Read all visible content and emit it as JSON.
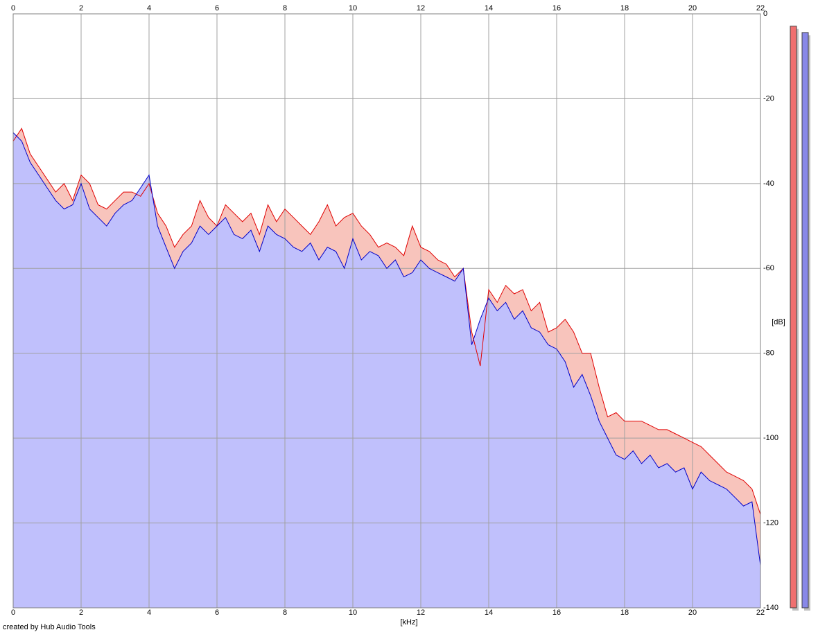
{
  "chart_data": {
    "type": "area",
    "footer": "created by Hub Audio Tools",
    "xlabel": "[kHz]",
    "ylabel": "[dB]",
    "xlim": [
      0,
      22
    ],
    "xticks": [
      0,
      2,
      4,
      6,
      8,
      10,
      12,
      14,
      16,
      18,
      20,
      22
    ],
    "ylim": [
      -140,
      0
    ],
    "yticks": [
      0,
      -20,
      -40,
      -60,
      -80,
      -100,
      -120,
      -140
    ],
    "grid": true,
    "x": [
      0,
      0.25,
      0.5,
      0.75,
      1,
      1.25,
      1.5,
      1.75,
      2,
      2.25,
      2.5,
      2.75,
      3,
      3.25,
      3.5,
      3.75,
      4,
      4.25,
      4.5,
      4.75,
      5,
      5.25,
      5.5,
      5.75,
      6,
      6.25,
      6.5,
      6.75,
      7,
      7.25,
      7.5,
      7.75,
      8,
      8.25,
      8.5,
      8.75,
      9,
      9.25,
      9.5,
      9.75,
      10,
      10.25,
      10.5,
      10.75,
      11,
      11.25,
      11.5,
      11.75,
      12,
      12.25,
      12.5,
      12.75,
      13,
      13.25,
      13.5,
      13.75,
      14,
      14.25,
      14.5,
      14.75,
      15,
      15.25,
      15.5,
      15.75,
      16,
      16.25,
      16.5,
      16.75,
      17,
      17.25,
      17.5,
      17.75,
      18,
      18.25,
      18.5,
      18.75,
      19,
      19.25,
      19.5,
      19.75,
      20,
      20.25,
      20.5,
      20.75,
      21,
      21.25,
      21.5,
      21.75,
      22
    ],
    "series": [
      {
        "color": "#e00000",
        "fill": "#f8c4bc",
        "values": [
          -30,
          -27,
          -33,
          -36,
          -39,
          -42,
          -40,
          -44,
          -38,
          -40,
          -45,
          -46,
          -44,
          -42,
          -42,
          -43,
          -40,
          -47,
          -50,
          -55,
          -52,
          -50,
          -44,
          -48,
          -50,
          -45,
          -47,
          -49,
          -47,
          -52,
          -45,
          -49,
          -46,
          -48,
          -50,
          -52,
          -49,
          -45,
          -50,
          -48,
          -47,
          -50,
          -52,
          -55,
          -54,
          -55,
          -57,
          -50,
          -55,
          -56,
          -58,
          -59,
          -62,
          -60,
          -75,
          -83,
          -65,
          -68,
          -64,
          -66,
          -65,
          -70,
          -68,
          -75,
          -74,
          -72,
          -75,
          -80,
          -80,
          -88,
          -95,
          -94,
          -96,
          -96,
          -96,
          -97,
          -98,
          -98,
          -99,
          -100,
          -101,
          -102,
          -104,
          -106,
          -108,
          -109,
          -110,
          -112,
          -118
        ]
      },
      {
        "color": "#0000c8",
        "fill": "#c0c0fc",
        "values": [
          -28,
          -30,
          -35,
          -38,
          -41,
          -44,
          -46,
          -45,
          -40,
          -46,
          -48,
          -50,
          -47,
          -45,
          -44,
          -41,
          -38,
          -50,
          -55,
          -60,
          -56,
          -54,
          -50,
          -52,
          -50,
          -48,
          -52,
          -53,
          -51,
          -56,
          -50,
          -52,
          -53,
          -55,
          -56,
          -54,
          -58,
          -55,
          -56,
          -60,
          -53,
          -58,
          -56,
          -57,
          -60,
          -58,
          -62,
          -61,
          -58,
          -60,
          -61,
          -62,
          -63,
          -60,
          -78,
          -72,
          -67,
          -70,
          -68,
          -72,
          -70,
          -74,
          -75,
          -78,
          -79,
          -82,
          -88,
          -85,
          -90,
          -96,
          -100,
          -104,
          -105,
          -103,
          -106,
          -104,
          -107,
          -106,
          -108,
          -107,
          -112,
          -108,
          -110,
          -111,
          -112,
          -114,
          -116,
          -115,
          -130
        ]
      }
    ],
    "levels": [
      -2.9,
      -4.4
    ]
  }
}
